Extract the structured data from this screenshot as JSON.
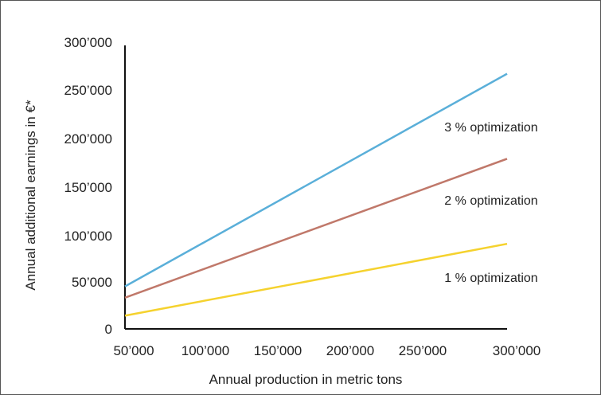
{
  "chart_data": {
    "type": "line",
    "title": "",
    "xlabel": "Annual production in metric tons",
    "ylabel": "Annual additional earnings in €*",
    "xlim": [
      50000,
      300000
    ],
    "ylim": [
      0,
      300000
    ],
    "x_ticks": [
      "50’000",
      "100’000",
      "150’000",
      "200’000",
      "250’000",
      "300’000"
    ],
    "y_ticks": [
      "0",
      "50’000",
      "100’000",
      "150’000",
      "200’000",
      "250’000",
      "300’000"
    ],
    "grid": false,
    "legend": "none (series labeled inline)",
    "series": [
      {
        "name": "3 % optimization",
        "color": "#5aafd9",
        "x": [
          50000,
          300000
        ],
        "y": [
          45000,
          270000
        ]
      },
      {
        "name": "2 % optimization",
        "color": "#c0786a",
        "x": [
          50000,
          300000
        ],
        "y": [
          33000,
          180000
        ]
      },
      {
        "name": "1 % optimization",
        "color": "#f5d22e",
        "x": [
          50000,
          300000
        ],
        "y": [
          14000,
          90000
        ]
      }
    ]
  }
}
